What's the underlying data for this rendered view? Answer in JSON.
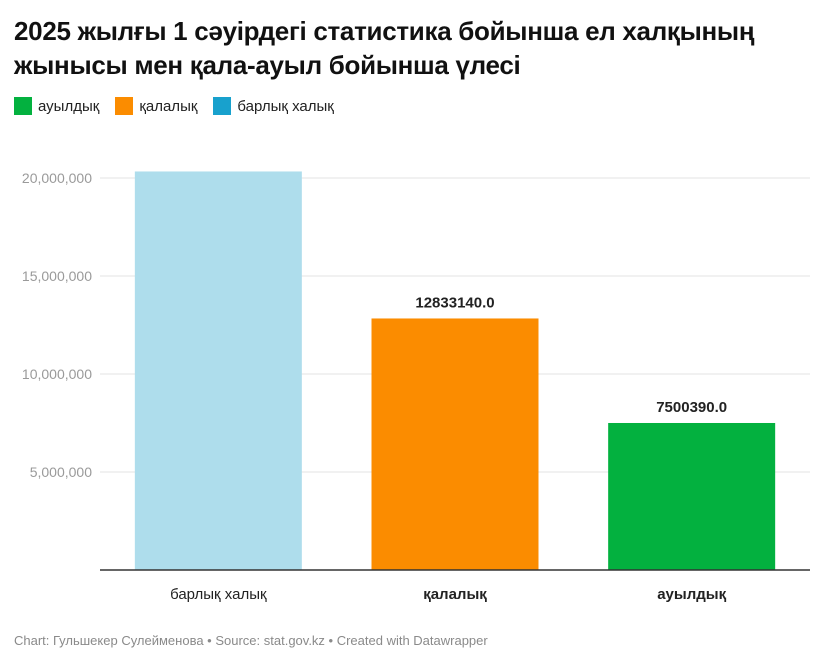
{
  "chart_data": {
    "type": "bar",
    "title": "2025 жылғы 1 сәуірдегі статистика бойынша ел халқының жынысы мен қала-ауыл бойынша үлесі",
    "legend": [
      {
        "label": "ауылдық",
        "color": "#03B13F"
      },
      {
        "label": "қалалық",
        "color": "#FB8C00"
      },
      {
        "label": "барлық халық",
        "color": "#18A1CD"
      }
    ],
    "categories": [
      "барлық халық",
      "қалалық",
      "ауылдық"
    ],
    "values": [
      20333530,
      12833140,
      7500390
    ],
    "data_labels": [
      "",
      "12833140.0",
      "7500390.0"
    ],
    "colors": [
      "#AEDDEC",
      "#FB8C00",
      "#03B13F"
    ],
    "yticks": [
      5000000,
      10000000,
      15000000,
      20000000
    ],
    "ytick_labels": [
      "5,000,000",
      "10,000,000",
      "15,000,000",
      "20,000,000"
    ],
    "ylim": [
      0,
      20000000
    ],
    "grid": true,
    "legend_position": "top-left",
    "xlabel": "",
    "ylabel": ""
  },
  "footer": "Chart: Гульшекер Сулейменова • Source: stat.gov.kz • Created with Datawrapper"
}
